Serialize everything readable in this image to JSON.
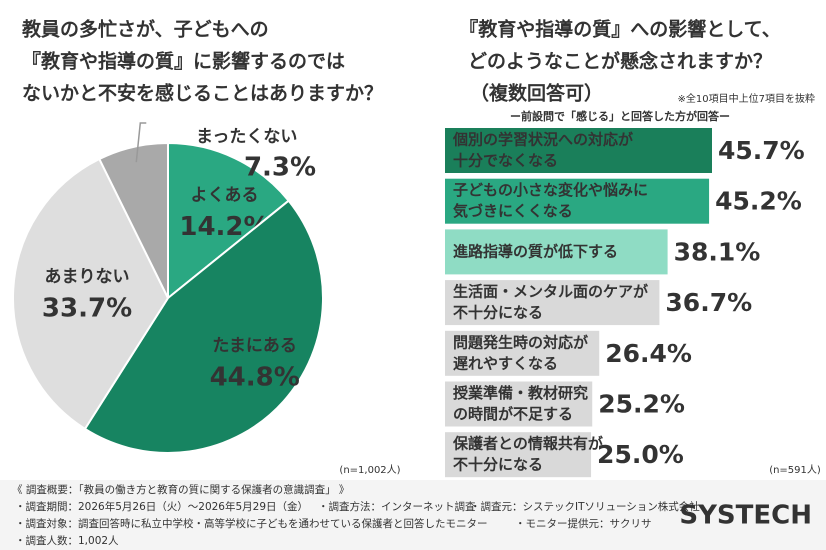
{
  "chart_data": [
    {
      "type": "pie",
      "title": [
        "教員の多忙さが、子どもへの",
        "『教育や指導の質』に影響するのでは",
        "ないかと不安を感じることはありますか？"
      ],
      "categories": [
        "よくある",
        "たまにある",
        "あまりない",
        "まったくない"
      ],
      "values": [
        14.2,
        44.8,
        33.7,
        7.3
      ],
      "value_labels": [
        "14.2%",
        "44.8%",
        "33.7%",
        "7.3%"
      ],
      "colors": [
        "#2aa882",
        "#178461",
        "#dedede",
        "#a9a9a9"
      ],
      "note": "(n=1,002人)"
    },
    {
      "type": "hbar",
      "title": [
        "『教育や指導の質』への影響として、",
        "どのようなことが懸念されますか？",
        "（複数回答可）"
      ],
      "annotation": "※全10項目中上位7項目を抜粋",
      "subtitle": "ー前設問で「感じる」と回答した方が回答ー",
      "categories": [
        [
          "個別の学習状況への対応が",
          "十分でなくなる"
        ],
        [
          "子どもの小さな変化や悩みに",
          "気づきにくくなる"
        ],
        [
          "進路指導の質が低下する"
        ],
        [
          "生活面・メンタル面のケアが",
          "不十分になる"
        ],
        [
          "問題発生時の対応が",
          "遅れやすくなる"
        ],
        [
          "授業準備・教材研究",
          "の時間が不足する"
        ],
        [
          "保護者との情報共有が",
          "不十分になる"
        ]
      ],
      "values": [
        45.7,
        45.2,
        38.1,
        36.7,
        26.4,
        25.2,
        25.0
      ],
      "value_labels": [
        "45.7%",
        "45.2%",
        "38.1%",
        "36.7%",
        "26.4%",
        "25.2%",
        "25.0%"
      ],
      "colors": [
        "#1a7f5a",
        "#2aa882",
        "#8fdcc4",
        "#d9d9d9",
        "#d9d9d9",
        "#d9d9d9",
        "#d9d9d9"
      ],
      "value_label_colors": [
        "#1a7f5a",
        "#1a7f5a",
        "#8fdcc4",
        "#444444",
        "#444444",
        "#444444",
        "#444444"
      ],
      "note": "(n=591人)"
    }
  ],
  "footer": {
    "heading": "《 調査概要：「教員の働き方と教育の質に関する保護者の意識調査」 》",
    "rows": [
      [
        "・調査期間：2026年5月26日（火）～2026年5月29日（金）",
        "・調査方法：インターネット調査",
        "・調査元：システックITソリューション株式会社"
      ],
      [
        "・調査対象：調査回答時に私立中学校・高等学校に子どもを通わせている保護者と回答したモニター",
        "・モニター提供元：サクリサ"
      ],
      [
        "・調査人数：1,002人"
      ]
    ],
    "logo": "SYSTECH"
  }
}
